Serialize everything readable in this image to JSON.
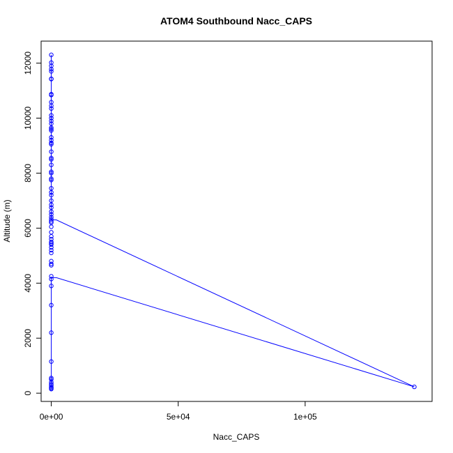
{
  "chart_data": {
    "type": "scatter",
    "title": "ATOM4 Southbound Nacc_CAPS",
    "xlabel": "Nacc_CAPS",
    "ylabel": "Altitude (m)",
    "xlim": [
      -4000,
      150000
    ],
    "ylim": [
      -300,
      12800
    ],
    "x_ticks": [
      0,
      50000,
      100000
    ],
    "x_tick_labels": [
      "0e+00",
      "5e+04",
      "1e+05"
    ],
    "y_ticks": [
      0,
      2000,
      4000,
      6000,
      8000,
      10000,
      12000
    ],
    "y_tick_labels": [
      "0",
      "2000",
      "4000",
      "6000",
      "8000",
      "10000",
      "12000"
    ],
    "grid": false,
    "colors": {
      "series": "#0000ff",
      "axis": "#000000"
    },
    "series": [
      {
        "style": "points+line",
        "points": [
          [
            0,
            12300
          ],
          [
            0,
            12020
          ],
          [
            0,
            11900
          ],
          [
            0,
            11780
          ],
          [
            0,
            11700
          ],
          [
            0,
            11430
          ],
          [
            0,
            11420
          ],
          [
            0,
            10870
          ],
          [
            0,
            10840
          ],
          [
            0,
            10580
          ],
          [
            0,
            10450
          ],
          [
            0,
            10350
          ],
          [
            0,
            10100
          ],
          [
            0,
            10000
          ],
          [
            0,
            9900
          ],
          [
            0,
            9800
          ],
          [
            0,
            9650
          ],
          [
            0,
            9600
          ],
          [
            0,
            9550
          ],
          [
            0,
            9300
          ],
          [
            0,
            9200
          ],
          [
            0,
            9100
          ],
          [
            0,
            9050
          ],
          [
            0,
            8780
          ],
          [
            0,
            8550
          ],
          [
            0,
            8500
          ],
          [
            0,
            8300
          ],
          [
            0,
            8050
          ],
          [
            0,
            8000
          ],
          [
            0,
            7800
          ],
          [
            0,
            7750
          ],
          [
            0,
            7450
          ],
          [
            0,
            7300
          ],
          [
            0,
            7200
          ],
          [
            0,
            7000
          ],
          [
            0,
            6850
          ],
          [
            0,
            6750
          ],
          [
            0,
            6600
          ],
          [
            0,
            6500
          ],
          [
            0,
            6400
          ],
          [
            0,
            6320
          ],
          [
            0,
            6250
          ],
          [
            0,
            6200
          ],
          [
            0,
            6050
          ],
          [
            0,
            5850
          ],
          [
            0,
            5700
          ],
          [
            0,
            5600
          ],
          [
            0,
            5500
          ],
          [
            0,
            5450
          ],
          [
            0,
            5400
          ],
          [
            0,
            5300
          ],
          [
            0,
            5200
          ],
          [
            0,
            5100
          ],
          [
            0,
            4800
          ],
          [
            0,
            4700
          ],
          [
            0,
            4650
          ],
          [
            0,
            4250
          ],
          [
            0,
            4150
          ],
          [
            0,
            3900
          ],
          [
            0,
            3200
          ],
          [
            0,
            2200
          ],
          [
            0,
            1150
          ],
          [
            0,
            550
          ],
          [
            0,
            500
          ],
          [
            0,
            400
          ],
          [
            0,
            330
          ],
          [
            0,
            280
          ],
          [
            0,
            220
          ],
          [
            0,
            180
          ],
          [
            0,
            150
          ],
          [
            143000,
            230
          ]
        ],
        "line_path": [
          [
            0,
            12300
          ],
          [
            0,
            11420
          ],
          [
            0,
            10870
          ],
          [
            0,
            10000
          ],
          [
            0,
            9000
          ],
          [
            0,
            8000
          ],
          [
            0,
            7000
          ],
          [
            0,
            6300
          ],
          [
            2000,
            6300
          ],
          [
            143000,
            230
          ],
          [
            2000,
            4200
          ],
          [
            0,
            4200
          ],
          [
            0,
            3200
          ],
          [
            0,
            2200
          ],
          [
            0,
            1150
          ],
          [
            0,
            500
          ],
          [
            0,
            150
          ]
        ]
      }
    ]
  }
}
